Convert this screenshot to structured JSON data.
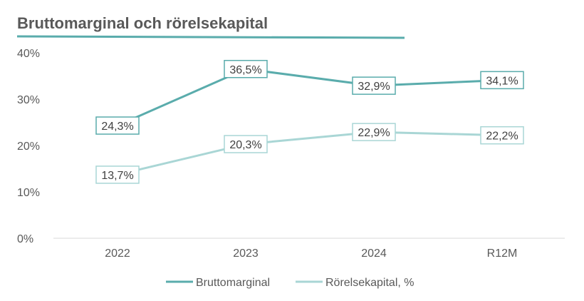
{
  "chart_data": {
    "type": "line",
    "title": "Bruttomarginal och rörelsekapital",
    "categories": [
      "2022",
      "2023",
      "2024",
      "R12M"
    ],
    "yticks": [
      "0%",
      "10%",
      "20%",
      "30%",
      "40%"
    ],
    "ylim": [
      0,
      40
    ],
    "xlabel": "",
    "ylabel": "",
    "grid": false,
    "legend_position": "bottom",
    "series": [
      {
        "name": "Bruttomarginal",
        "values": [
          24.3,
          36.5,
          32.9,
          34.1
        ],
        "labels": [
          "24,3%",
          "36,5%",
          "32,9%",
          "34,1%"
        ],
        "color": "#5aacac"
      },
      {
        "name": "Rörelsekapital, %",
        "values": [
          13.7,
          20.3,
          22.9,
          22.2
        ],
        "labels": [
          "13,7%",
          "20,3%",
          "22,9%",
          "22,2%"
        ],
        "color": "#a9d6d5"
      }
    ]
  }
}
